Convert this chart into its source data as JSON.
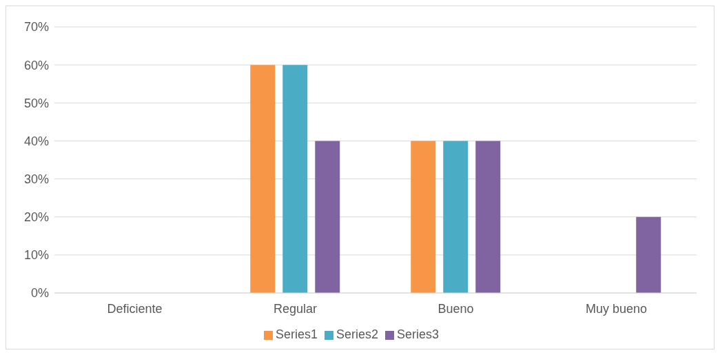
{
  "chart_data": {
    "type": "bar",
    "categories": [
      "Deficiente",
      "Regular",
      "Bueno",
      "Muy bueno"
    ],
    "series": [
      {
        "name": "Series1",
        "color": "#f79646",
        "values": [
          0,
          60,
          40,
          0
        ]
      },
      {
        "name": "Series2",
        "color": "#4bacc6",
        "values": [
          0,
          60,
          40,
          0
        ]
      },
      {
        "name": "Series3",
        "color": "#8064a2",
        "values": [
          0,
          40,
          40,
          20
        ]
      }
    ],
    "ylim": [
      0,
      70
    ],
    "yticks": [
      {
        "value": 0,
        "label": "0%"
      },
      {
        "value": 10,
        "label": "10%"
      },
      {
        "value": 20,
        "label": "20%"
      },
      {
        "value": 30,
        "label": "30%"
      },
      {
        "value": 40,
        "label": "40%"
      },
      {
        "value": 50,
        "label": "50%"
      },
      {
        "value": 60,
        "label": "60%"
      },
      {
        "value": 70,
        "label": "70%"
      }
    ],
    "grid": "y",
    "legend": "bottom"
  }
}
